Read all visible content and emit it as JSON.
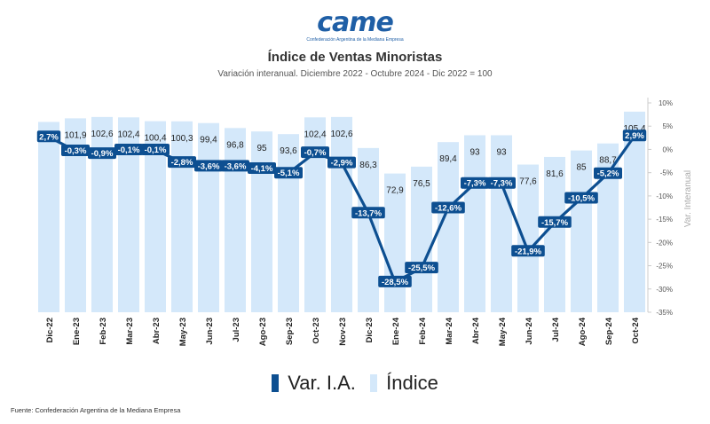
{
  "header": {
    "logo_text": "came",
    "logo_subtitle": "Confederación Argentina de la Mediana Empresa",
    "title": "Índice de Ventas Minoristas",
    "subtitle": "Variación interanual. Diciembre 2022 - Octubre 2024 - Dic 2022 = 100"
  },
  "footer": {
    "source": "Fuente: Confederación Argentina de la Mediana Empresa"
  },
  "colors": {
    "line": "#0d4f91",
    "bars": "#d4e8fa",
    "axis_text": "#555555"
  },
  "chart_data": {
    "type": "bar",
    "categories": [
      "Dic-22",
      "Ene-23",
      "Feb-23",
      "Mar-23",
      "Abr-23",
      "May-23",
      "Jun-23",
      "Jul-23",
      "Ago-23",
      "Sep-23",
      "Oct-23",
      "Nov-23",
      "Dic-23",
      "Ene-24",
      "Feb-24",
      "Mar-24",
      "Abr-24",
      "May-24",
      "Jun-24",
      "Jul-24",
      "Ago-24",
      "Sep-24",
      "Oct-24"
    ],
    "series": [
      {
        "name": "Índice",
        "type": "bar",
        "values": [
          100,
          101.9,
          102.6,
          102.4,
          100.4,
          100.3,
          99.4,
          96.8,
          95,
          93.6,
          102.4,
          102.6,
          86.3,
          72.9,
          76.5,
          89.4,
          93,
          93,
          77.6,
          81.6,
          85,
          88.7,
          105.4
        ],
        "labels": [
          "100",
          "101,9",
          "102,6",
          "102,4",
          "100,4",
          "100,3",
          "99,4",
          "96,8",
          "95",
          "93,6",
          "102,4",
          "102,6",
          "86,3",
          "72,9",
          "76,5",
          "89,4",
          "93",
          "93",
          "77,6",
          "81,6",
          "85",
          "88,7",
          "105,4"
        ]
      },
      {
        "name": "Var. I.A.",
        "type": "line",
        "axis": "right",
        "values": [
          2.7,
          -0.3,
          -0.9,
          -0.1,
          -0.1,
          -2.8,
          -3.6,
          -3.6,
          -4.1,
          -5.1,
          -0.7,
          -2.9,
          -13.7,
          -28.5,
          -25.5,
          -12.6,
          -7.3,
          -7.3,
          -21.9,
          -15.7,
          -10.5,
          -5.2,
          2.9
        ],
        "labels": [
          "2,7%",
          "-0,3%",
          "-0,9%",
          "-0,1%",
          "-0,1%",
          "-2,8%",
          "-3,6%",
          "-3,6%",
          "-4,1%",
          "-5,1%",
          "-0,7%",
          "-2,9%",
          "-13,7%",
          "-28,5%",
          "-25,5%",
          "-12,6%",
          "-7,3%",
          "-7,3%",
          "-21,9%",
          "-15,7%",
          "-10,5%",
          "-5,2%",
          "2,9%"
        ]
      }
    ],
    "right_axis": {
      "label": "Var. Interanual",
      "range": [
        -35,
        10
      ],
      "ticks": [
        10,
        5,
        0,
        -5,
        -10,
        -15,
        -20,
        -25,
        -30,
        -35
      ],
      "tick_labels": [
        "10%",
        "5%",
        "0%",
        "-5%",
        "-10%",
        "-15%",
        "-20%",
        "-25%",
        "-30%",
        "-35%"
      ]
    },
    "left_axis": {
      "range": [
        0,
        110
      ]
    },
    "legend": {
      "position": "bottom",
      "entries": [
        "Var. I.A.",
        "Índice"
      ]
    }
  }
}
